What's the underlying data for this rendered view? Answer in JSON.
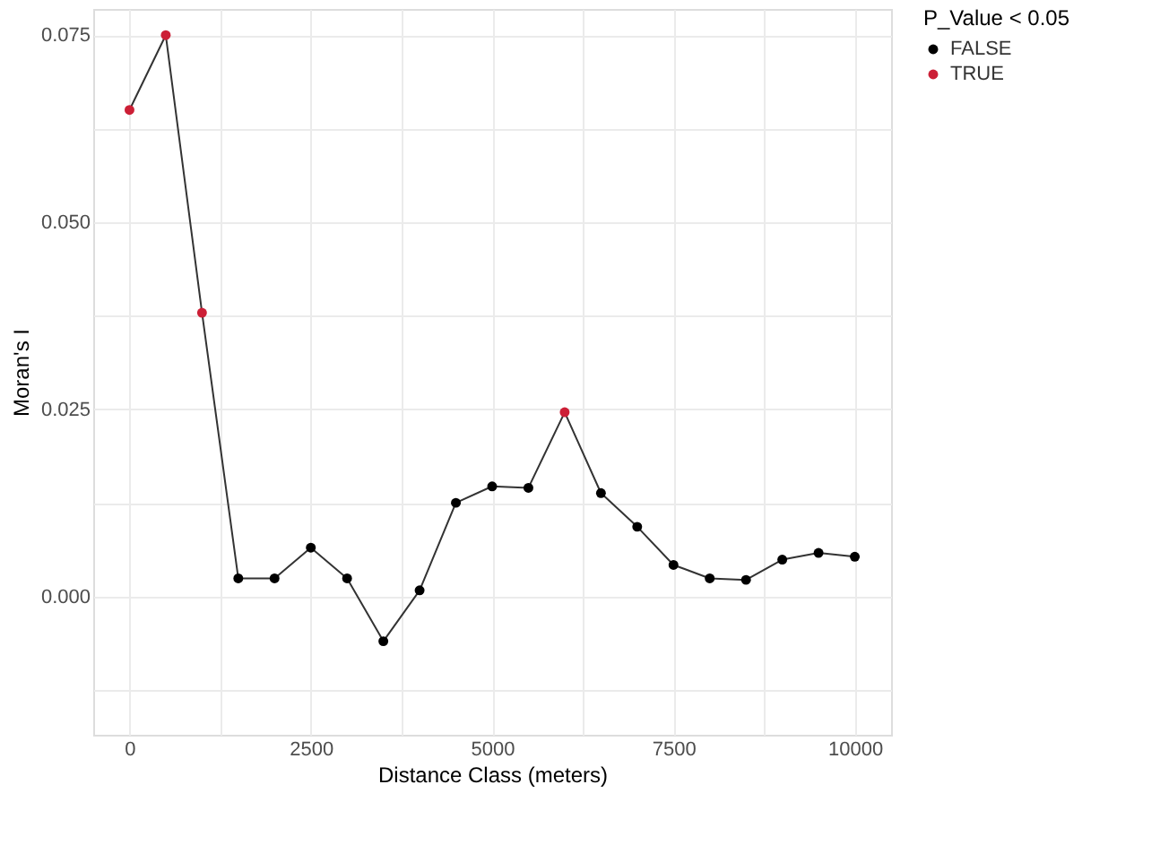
{
  "chart_data": {
    "type": "line",
    "xlabel": "Distance Class (meters)",
    "ylabel": "Moran's I",
    "legend_title": "P_Value < 0.05",
    "x": [
      0,
      500,
      1000,
      1500,
      2000,
      2500,
      3000,
      3500,
      4000,
      4500,
      5000,
      5500,
      6000,
      6500,
      7000,
      7500,
      8000,
      8500,
      9000,
      9500,
      10000
    ],
    "series": [
      {
        "type": "line",
        "marker": "none",
        "color": "#333333",
        "values": [
          0.065,
          0.075,
          0.0379,
          0.0024,
          0.0024,
          0.0065,
          0.0024,
          -0.006,
          0.0008,
          0.0125,
          0.0147,
          0.0145,
          0.0246,
          0.0138,
          0.0093,
          0.0042,
          0.0024,
          0.0022,
          0.0049,
          0.0058,
          0.0053
        ]
      },
      {
        "type": "scatter",
        "name": "FALSE",
        "color": "#000000",
        "x": [
          1500,
          2000,
          2500,
          3000,
          3500,
          4000,
          4500,
          5000,
          5500,
          6500,
          7000,
          7500,
          8000,
          8500,
          9000,
          9500,
          10000
        ],
        "values": [
          0.0024,
          0.0024,
          0.0065,
          0.0024,
          -0.006,
          0.0008,
          0.0125,
          0.0147,
          0.0145,
          0.0138,
          0.0093,
          0.0042,
          0.0024,
          0.0022,
          0.0049,
          0.0058,
          0.0053
        ]
      },
      {
        "type": "scatter",
        "name": "TRUE",
        "color": "#cc1f36",
        "x": [
          0,
          500,
          1000,
          6000
        ],
        "values": [
          0.065,
          0.075,
          0.0379,
          0.0246
        ]
      }
    ],
    "xlim": [
      -500,
      10500
    ],
    "xticks": [
      0,
      {
        "value": 1250,
        "label": null
      },
      2500,
      {
        "value": 3750,
        "label": null
      },
      5000,
      {
        "value": 6250,
        "label": null
      },
      7500,
      {
        "value": 8750,
        "label": null
      },
      10000
    ],
    "ylim": [
      -0.0185,
      0.0785
    ],
    "yticks": [
      {
        "value": -0.0125,
        "label": null
      },
      {
        "value": 0,
        "label": "0.000"
      },
      {
        "value": 0.0125,
        "label": null
      },
      {
        "value": 0.025,
        "label": "0.025"
      },
      {
        "value": 0.0375,
        "label": null
      },
      {
        "value": 0.05,
        "label": "0.050"
      },
      {
        "value": 0.0625,
        "label": null
      },
      {
        "value": 0.075,
        "label": "0.075"
      }
    ],
    "grid": true,
    "legend": "right",
    "marker": "circle",
    "line_style": "solid"
  }
}
